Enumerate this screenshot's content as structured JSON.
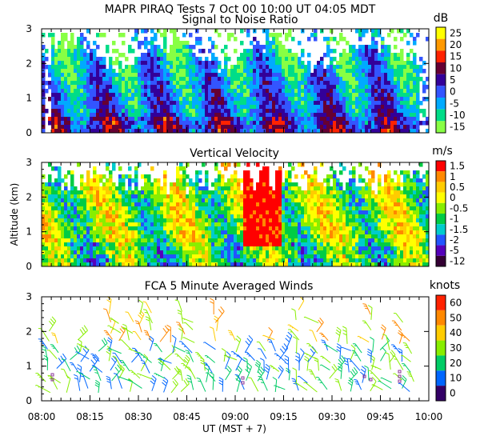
{
  "title": "MAPR PIRAQ Tests   7 Oct 00   10:00 UT   04:05   MDT",
  "xlabel": "UT  (MST + 7)",
  "ylabel": "Altitude (km)",
  "xticks": [
    "08:00",
    "08:15",
    "08:30",
    "08:45",
    "09:00",
    "09:15",
    "09:30",
    "09:45",
    "10:00"
  ],
  "chart_data": [
    {
      "type": "heatmap",
      "title": "Signal to Noise Ratio",
      "units": "dB",
      "xlim": [
        0,
        120
      ],
      "ylim": [
        0,
        3
      ],
      "yticks": [
        "0",
        "1",
        "2",
        "3"
      ],
      "colorbar": {
        "labels": [
          "25",
          "20",
          "15",
          "10",
          "5",
          "0",
          "-5",
          "-10",
          "-15"
        ],
        "colors": [
          "#ffff00",
          "#ff9900",
          "#ff2200",
          "#660033",
          "#330099",
          "#3355ff",
          "#00aaff",
          "#00dd88",
          "#88ff44"
        ]
      }
    },
    {
      "type": "heatmap",
      "title": "Vertical Velocity",
      "units": "m/s",
      "xlim": [
        0,
        120
      ],
      "ylim": [
        0,
        3
      ],
      "yticks": [
        "0",
        "1",
        "2",
        "3"
      ],
      "colorbar": {
        "labels": [
          "1.5",
          "1",
          "0.5",
          "0",
          "-0.5",
          "-1",
          "-1.5",
          "-2",
          "-5",
          "-12"
        ],
        "colors": [
          "#ff0000",
          "#ff8800",
          "#ffcc00",
          "#ffff00",
          "#88ee00",
          "#00cc44",
          "#00cccc",
          "#2255ff",
          "#5500bb",
          "#330033"
        ]
      }
    },
    {
      "type": "scatter",
      "title": "FCA 5 Minute Averaged Winds",
      "units": "knots",
      "xlim": [
        0,
        120
      ],
      "ylim": [
        0,
        3
      ],
      "yticks": [
        "0",
        "1",
        "2",
        "3"
      ],
      "colorbar": {
        "labels": [
          "60",
          "50",
          "40",
          "30",
          "20",
          "10",
          "0"
        ],
        "colors": [
          "#ff2200",
          "#ff8800",
          "#ffcc00",
          "#88ee00",
          "#00cc66",
          "#0066ff",
          "#330066"
        ]
      }
    }
  ]
}
